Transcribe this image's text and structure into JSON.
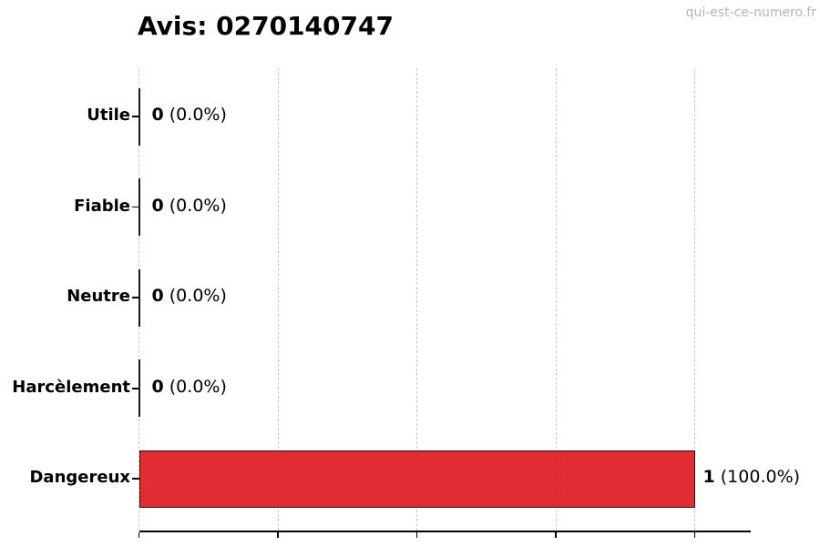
{
  "header": {
    "title": "Avis: 0270140747",
    "watermark": "qui-est-ce-numero.fr"
  },
  "chart_data": {
    "type": "bar",
    "orientation": "horizontal",
    "title": "Avis: 0270140747",
    "categories": [
      "Utile",
      "Fiable",
      "Neutre",
      "Harcèlement",
      "Dangereux"
    ],
    "values": [
      0,
      0,
      0,
      0,
      1
    ],
    "counts": [
      "0",
      "0",
      "0",
      "0",
      "1"
    ],
    "percent_labels": [
      "(0.0%)",
      "(0.0%)",
      "(0.0%)",
      "(0.0%)",
      "(100.0%)"
    ],
    "bar_labels": [
      "0 (0.0%)",
      "0 (0.0%)",
      "0 (0.0%)",
      "0 (0.0%)",
      "1 (100.0%)"
    ],
    "xlabel": "",
    "ylabel": "",
    "xlim": [
      0,
      1.1
    ],
    "x_ticks": [
      0,
      0.25,
      0.5,
      0.75,
      1.0
    ],
    "x_tick_labels_visible": false,
    "grid": "vertical-dashed",
    "legend": false,
    "colors": {
      "bar_fill": "#e02329",
      "bar_edge": "#1a1a1a",
      "grid": "#c8c8c8",
      "axis": "#000000",
      "text": "#000000",
      "watermark": "#b5b5b5",
      "background": "#ffffff"
    }
  }
}
